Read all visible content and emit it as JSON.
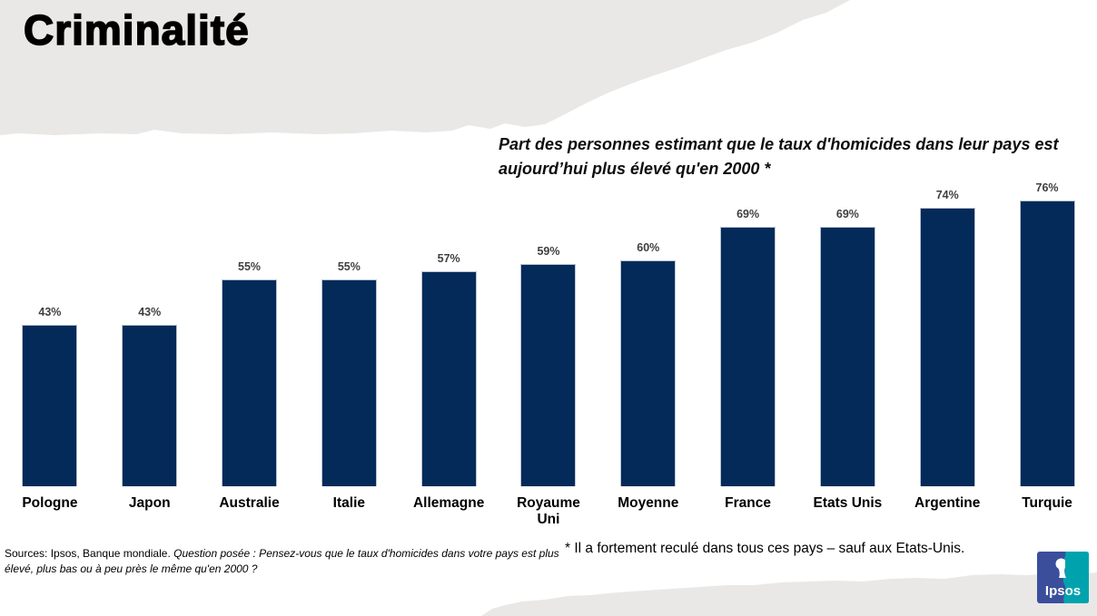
{
  "slide": {
    "title": "Criminalité",
    "subtitle": "Part des personnes estimant que le taux d'homicides dans leur pays est aujourd’hui plus élevé qu'en 2000 *",
    "source_prefix": "Sources: Ipsos, Banque mondiale. ",
    "source_question": "Question posée : Pensez-vous que le taux d'homicides dans votre pays est plus élevé, plus bas ou à peu près le même qu'en 2000 ?",
    "footnote": "* Il a fortement reculé dans tous ces pays – sauf aux Etats-Unis.",
    "logo_text": "Ipsos"
  },
  "colors": {
    "band_gray": "#e9e8e6",
    "bar_navy": "#032a59",
    "value_label_gray": "#3f3f3f",
    "logo_blue": "#3b4e9b",
    "logo_teal": "#00a3ad"
  },
  "chart_data": {
    "type": "bar",
    "title": "Part des personnes estimant que le taux d'homicides dans leur pays est aujourd’hui plus élevé qu'en 2000 *",
    "categories": [
      "Pologne",
      "Japon",
      "Australie",
      "Italie",
      "Allemagne",
      "Royaume Uni",
      "Moyenne",
      "France",
      "Etats Unis",
      "Argentine",
      "Turquie"
    ],
    "values": [
      43,
      43,
      55,
      55,
      57,
      59,
      60,
      69,
      69,
      74,
      76
    ],
    "unit": "%",
    "xlabel": "",
    "ylabel": "",
    "ylim": [
      0,
      80
    ],
    "grid": false,
    "legend": false,
    "bar_color": "#032a59",
    "value_label_color": "#3f3f3f"
  }
}
